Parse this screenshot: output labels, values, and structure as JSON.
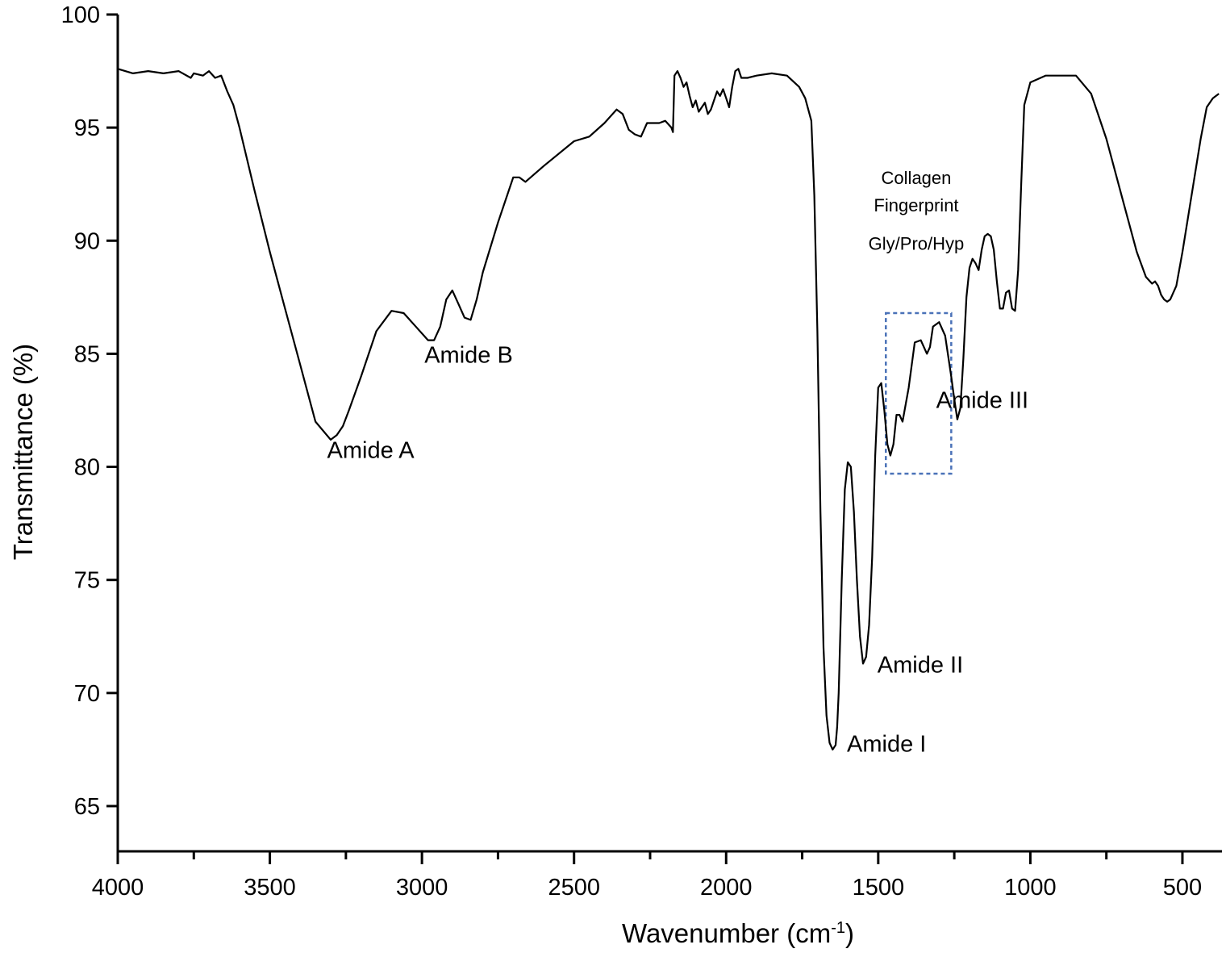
{
  "chart_data": {
    "type": "line",
    "xlabel": "Wavenumber (cm",
    "xlabel_sup": "-1",
    "xlabel_close": ")",
    "ylabel": "Transmittance (%)",
    "xlim": [
      4000,
      370
    ],
    "ylim": [
      63,
      100
    ],
    "x_reversed": true,
    "xticks": [
      4000,
      3500,
      3000,
      2500,
      2000,
      1500,
      1000,
      500
    ],
    "xticks_minor": [
      3750,
      3250,
      2750,
      2250,
      1750,
      1250,
      750
    ],
    "yticks": [
      65,
      70,
      75,
      80,
      85,
      90,
      95,
      100
    ],
    "grid": false,
    "line_color": "#000000",
    "series": [
      {
        "x": [
          4000,
          3950,
          3900,
          3850,
          3800,
          3760,
          3750,
          3720,
          3700,
          3680,
          3660,
          3640,
          3620,
          3600,
          3550,
          3500,
          3450,
          3400,
          3350,
          3300,
          3280,
          3260,
          3240,
          3200,
          3150,
          3100,
          3060,
          3020,
          2980,
          2960,
          2940,
          2920,
          2900,
          2880,
          2860,
          2840,
          2820,
          2800,
          2750,
          2700,
          2680,
          2660,
          2600,
          2500,
          2450,
          2400,
          2360,
          2340,
          2320,
          2300,
          2280,
          2260,
          2220,
          2200,
          2180,
          2175,
          2170,
          2160,
          2150,
          2140,
          2130,
          2120,
          2110,
          2100,
          2090,
          2080,
          2070,
          2060,
          2050,
          2040,
          2030,
          2020,
          2010,
          2000,
          1990,
          1980,
          1970,
          1960,
          1950,
          1930,
          1900,
          1850,
          1800,
          1760,
          1740,
          1720,
          1710,
          1700,
          1690,
          1680,
          1670,
          1660,
          1650,
          1640,
          1635,
          1630,
          1620,
          1610,
          1600,
          1590,
          1580,
          1570,
          1560,
          1550,
          1540,
          1530,
          1520,
          1510,
          1500,
          1490,
          1480,
          1470,
          1460,
          1450,
          1440,
          1430,
          1420,
          1400,
          1380,
          1360,
          1340,
          1330,
          1320,
          1300,
          1280,
          1260,
          1250,
          1240,
          1230,
          1220,
          1210,
          1200,
          1190,
          1180,
          1170,
          1160,
          1150,
          1140,
          1130,
          1120,
          1110,
          1100,
          1090,
          1080,
          1070,
          1060,
          1050,
          1040,
          1030,
          1020,
          1000,
          950,
          900,
          850,
          800,
          750,
          700,
          650,
          620,
          600,
          590,
          580,
          570,
          560,
          550,
          540,
          520,
          500,
          470,
          440,
          420,
          400,
          380
        ],
        "y": [
          97.6,
          97.4,
          97.5,
          97.4,
          97.5,
          97.2,
          97.4,
          97.3,
          97.5,
          97.2,
          97.3,
          96.6,
          96.0,
          95.0,
          92.2,
          89.5,
          87.0,
          84.5,
          82.0,
          81.2,
          81.4,
          81.8,
          82.5,
          84.0,
          86.0,
          86.9,
          86.8,
          86.2,
          85.6,
          85.6,
          86.2,
          87.4,
          87.8,
          87.2,
          86.6,
          86.5,
          87.4,
          88.6,
          90.8,
          92.8,
          92.8,
          92.6,
          93.3,
          94.4,
          94.6,
          95.2,
          95.8,
          95.6,
          94.9,
          94.7,
          94.6,
          95.2,
          95.2,
          95.3,
          95.0,
          94.8,
          97.3,
          97.5,
          97.2,
          96.8,
          97.0,
          96.4,
          95.9,
          96.2,
          95.7,
          95.9,
          96.1,
          95.6,
          95.8,
          96.2,
          96.6,
          96.4,
          96.7,
          96.3,
          95.9,
          96.8,
          97.5,
          97.6,
          97.2,
          97.2,
          97.3,
          97.4,
          97.3,
          96.8,
          96.3,
          95.3,
          92.0,
          86.0,
          78.0,
          72.0,
          69.0,
          67.8,
          67.5,
          67.7,
          68.5,
          70.0,
          75.0,
          79.0,
          80.2,
          80.0,
          78.0,
          75.0,
          72.5,
          71.3,
          71.6,
          73.0,
          76.0,
          80.5,
          83.5,
          83.7,
          82.5,
          81.0,
          80.5,
          81.0,
          82.3,
          82.3,
          82.0,
          83.5,
          85.5,
          85.6,
          85.0,
          85.3,
          86.2,
          86.4,
          85.8,
          84.0,
          83.0,
          82.1,
          82.6,
          84.8,
          87.5,
          88.8,
          89.2,
          89.0,
          88.7,
          89.6,
          90.2,
          90.3,
          90.2,
          89.6,
          88.2,
          87.0,
          87.0,
          87.7,
          87.8,
          87.0,
          86.9,
          88.7,
          92.5,
          96.0,
          97.0,
          97.3,
          97.3,
          97.3,
          96.5,
          94.5,
          92.0,
          89.5,
          88.4,
          88.1,
          88.2,
          88.0,
          87.6,
          87.4,
          87.3,
          87.4,
          88.0,
          89.5,
          92.0,
          94.5,
          95.9,
          96.3,
          96.5
        ]
      }
    ],
    "annotations": [
      {
        "text": "Amide A",
        "x": 3280,
        "y": 80.4
      },
      {
        "text": "Amide B",
        "x": 2960,
        "y": 84.6
      },
      {
        "text": "Amide I",
        "x": 1640,
        "y": 67.4
      },
      {
        "text": "Amide II",
        "x": 1540,
        "y": 70.9
      },
      {
        "text": "Amide III",
        "x": 1230,
        "y": 82.6
      },
      {
        "text": "Collagen",
        "x": 1375,
        "y": 92.5
      },
      {
        "text": "Fingerprint",
        "x": 1375,
        "y": 91.3
      },
      {
        "text": "Gly/Pro/Hyp",
        "x": 1375,
        "y": 89.6
      }
    ],
    "highlight_box": {
      "x_from": 1475,
      "x_to": 1260,
      "y_from": 79.7,
      "y_to": 86.8,
      "color": "#4a72b8",
      "style": "dashed"
    }
  }
}
